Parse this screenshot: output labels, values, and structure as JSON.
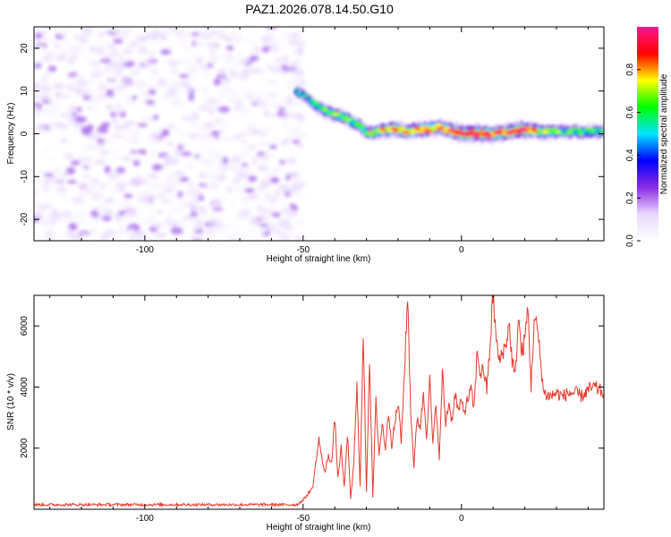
{
  "figure_title": "PAZ1.2026.078.14.50.G10",
  "chart_data": [
    {
      "type": "heatmap",
      "title": "PAZ1.2026.078.14.50.G10",
      "xlabel": "Height of straight line (km)",
      "ylabel": "Frequency (Hz)",
      "xlim": [
        -135,
        45
      ],
      "ylim": [
        -25,
        25
      ],
      "xticks": [
        -100,
        -50,
        0
      ],
      "yticks": [
        -20,
        -10,
        0,
        10,
        20
      ],
      "colorbar": {
        "label": "Normalized spectral amplitude",
        "range": [
          0,
          1
        ],
        "ticks": [
          "0.0",
          "0.2",
          "0.4",
          "0.6",
          "0.8"
        ],
        "tick_values": [
          0.0,
          0.2,
          0.4,
          0.6,
          0.8
        ],
        "colors": [
          "#ffffff",
          "#e8d8ff",
          "#8a2be2",
          "#0000ff",
          "#00e5ff",
          "#00ff00",
          "#ffff00",
          "#ff0000",
          "#ff1493"
        ]
      },
      "noise_region": {
        "x": [
          -135,
          -50
        ],
        "y": [
          -25,
          25
        ],
        "level": [
          0.0,
          0.2
        ]
      },
      "ridge": {
        "x": [
          -52,
          -48,
          -45,
          -42,
          -40,
          -37,
          -35,
          -32,
          -30,
          -27,
          -25,
          -22,
          -20,
          -17,
          -15,
          -12,
          -10,
          -7,
          -5,
          -2,
          0,
          5,
          10,
          15,
          20,
          25,
          30,
          35,
          40,
          45
        ],
        "frequency": [
          10,
          8,
          6,
          5,
          4.5,
          4,
          3,
          2,
          0,
          0.5,
          1,
          1,
          1,
          0.5,
          1,
          1,
          1,
          1.5,
          1,
          0.5,
          0,
          0,
          0,
          0.5,
          1,
          0.5,
          0.5,
          0.5,
          0.5,
          0.5
        ],
        "amplitude": [
          0.35,
          0.4,
          0.5,
          0.6,
          0.65,
          0.6,
          0.55,
          0.55,
          0.6,
          0.7,
          0.75,
          0.8,
          0.8,
          0.75,
          0.8,
          0.85,
          0.8,
          0.8,
          0.85,
          0.9,
          0.95,
          0.95,
          0.9,
          0.9,
          0.95,
          0.7,
          0.6,
          0.6,
          0.55,
          0.55
        ]
      }
    },
    {
      "type": "line",
      "xlabel": "Height of straight line (km)",
      "ylabel": "SNR (10 * v/v)",
      "xlim": [
        -135,
        45
      ],
      "ylim": [
        0,
        7000
      ],
      "xticks": [
        -100,
        -50,
        0
      ],
      "yticks": [
        2000,
        4000,
        6000
      ],
      "color": "#e8392c",
      "series": [
        {
          "name": "SNR",
          "x": [
            -135,
            -52,
            -50,
            -47,
            -46,
            -45,
            -44,
            -43,
            -42,
            -41,
            -40,
            -39,
            -38,
            -37,
            -36,
            -35,
            -34,
            -33,
            -32,
            -31,
            -30,
            -29,
            -28,
            -27,
            -26,
            -25,
            -24,
            -23,
            -22,
            -21,
            -20,
            -19,
            -18,
            -17,
            -16,
            -15,
            -14,
            -13,
            -12,
            -11,
            -10,
            -9,
            -8,
            -7,
            -6,
            -5,
            -4,
            -3,
            -2,
            -1,
            0,
            1,
            2,
            3,
            4,
            5,
            6,
            7,
            8,
            9,
            10,
            11,
            12,
            13,
            14,
            15,
            16,
            17,
            18,
            19,
            20,
            21,
            22,
            23,
            24,
            26,
            28,
            30,
            32,
            34,
            36,
            38,
            40,
            42,
            45
          ],
          "y": [
            150,
            150,
            300,
            700,
            1500,
            2300,
            1600,
            1200,
            1800,
            1500,
            3000,
            1000,
            2000,
            700,
            2500,
            300,
            1500,
            4000,
            800,
            5700,
            600,
            5000,
            400,
            3500,
            1800,
            2800,
            2000,
            3200,
            2100,
            2800,
            3500,
            2200,
            4500,
            7000,
            3200,
            1400,
            3000,
            2700,
            3800,
            2400,
            4200,
            2100,
            3500,
            1600,
            4500,
            2800,
            3500,
            2900,
            3800,
            3200,
            3500,
            3200,
            3600,
            3900,
            3300,
            5200,
            4400,
            4600,
            3900,
            5300,
            7000,
            5500,
            4800,
            5200,
            5300,
            6100,
            4900,
            4300,
            6300,
            5100,
            5500,
            6600,
            4000,
            6200,
            5900,
            3800,
            3700,
            3800,
            3700,
            3800,
            3800,
            3700,
            3900,
            4000,
            3800
          ]
        }
      ]
    }
  ]
}
